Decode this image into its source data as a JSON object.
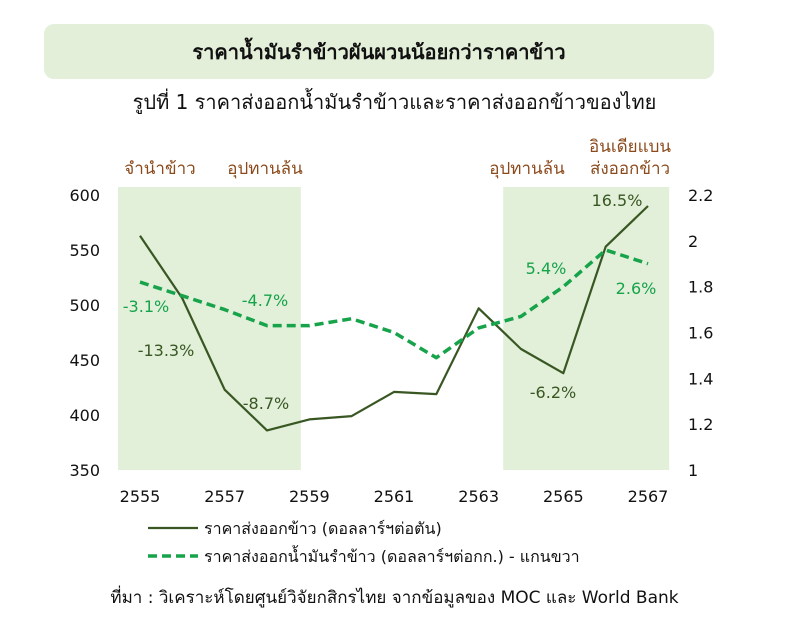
{
  "banner_title": "ราคาน้ำมันรำข้าวผันผวนน้อยกว่าราคาข้าว",
  "source": "ที่มา : วิเคราะห์โดยศูนย์วิจัยกสิกรไทย จากข้อมูลของ MOC และ World Bank",
  "colors": {
    "banner_bg": "#e4efd9",
    "band": "#e2efd9",
    "rice": "#385723",
    "oil": "#16a34a",
    "label_brown": "#8b4a1c"
  },
  "chart_data": {
    "type": "line",
    "title": "รูปที่ 1 ราคาส่งออกน้ำมันรำข้าวและราคาส่งออกข้าวของไทย",
    "x": [
      2555,
      2556,
      2557,
      2558,
      2559,
      2560,
      2561,
      2562,
      2563,
      2564,
      2565,
      2566,
      2567
    ],
    "xticks": [
      "2555",
      "2557",
      "2559",
      "2561",
      "2563",
      "2565",
      "2567"
    ],
    "y_left": {
      "ylim": [
        350,
        600
      ],
      "ticks": [
        "600",
        "550",
        "500",
        "450",
        "400",
        "350"
      ]
    },
    "y_right": {
      "ylim": [
        1,
        2.2
      ],
      "ticks": [
        "2.2",
        "2",
        "1.8",
        "1.6",
        "1.4",
        "1.2",
        "1"
      ]
    },
    "series": [
      {
        "name": "ราคาส่งออกข้าว (ดอลลาร์ฯต่อตัน)",
        "axis": "left",
        "style": "solid",
        "values": [
          563,
          506,
          423,
          386,
          396,
          399,
          421,
          419,
          497,
          460,
          438,
          553,
          590
        ]
      },
      {
        "name": "ราคาส่งออกน้ำมันรำข้าว (ดอลลาร์ฯต่อกก.) - แกนขวา",
        "axis": "right",
        "style": "dashed",
        "values": [
          1.82,
          1.76,
          1.7,
          1.63,
          1.63,
          1.66,
          1.6,
          1.49,
          1.62,
          1.67,
          1.8,
          1.96,
          1.9
        ]
      }
    ],
    "shaded_periods": [
      {
        "from": 2555,
        "to": 2556.9,
        "label": "จำนำข้าว"
      },
      {
        "from": 2557.4,
        "to": 2558.8,
        "label": "อุปทานล้น"
      },
      {
        "from": 2564.1,
        "to": 2565.9,
        "label": "อุปทานล้น"
      },
      {
        "from": 2566.1,
        "to": 2567.5,
        "label": "อินเดียแบน\nส่งออกข้าว"
      }
    ],
    "annotations": [
      {
        "text": "-3.1%",
        "series": "oil"
      },
      {
        "text": "-13.3%",
        "series": "rice"
      },
      {
        "text": "-4.7%",
        "series": "oil"
      },
      {
        "text": "-8.7%",
        "series": "rice"
      },
      {
        "text": "5.4%",
        "series": "oil"
      },
      {
        "text": "-6.2%",
        "series": "rice"
      },
      {
        "text": "16.5%",
        "series": "rice"
      },
      {
        "text": "2.6%",
        "series": "oil"
      }
    ],
    "legend_position": "bottom"
  }
}
